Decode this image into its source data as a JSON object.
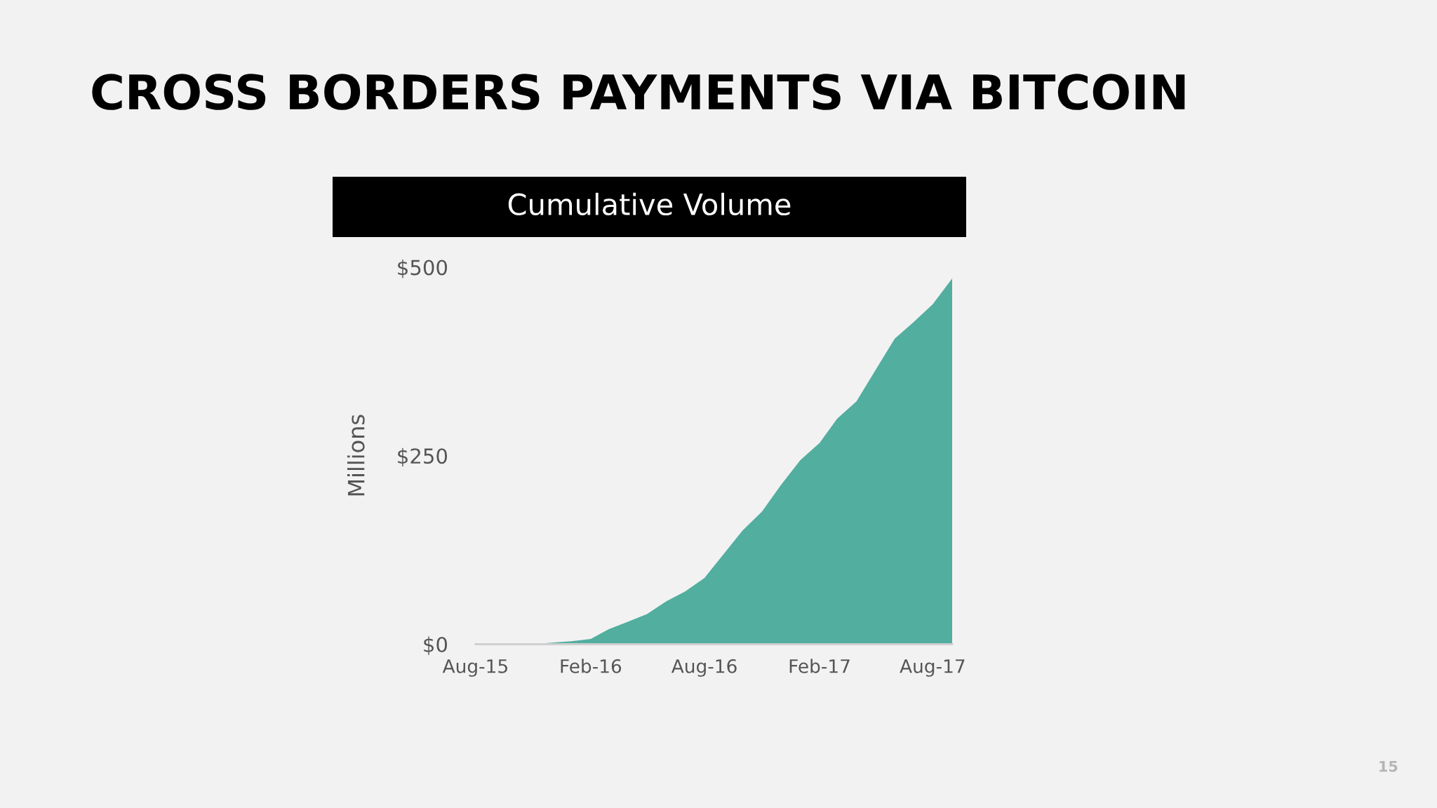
{
  "chart_data": {
    "type": "area",
    "title": "CROSS BORDERS PAYMENTS VIA BITCOIN",
    "subtitle": "Cumulative Volume",
    "ylabel": "Millions",
    "annotations": [
      "15"
    ],
    "x": [
      "2015-08",
      "2015-09",
      "2015-10",
      "2015-11",
      "2015-12",
      "2016-01",
      "2016-02",
      "2016-03",
      "2016-04",
      "2016-05",
      "2016-06",
      "2016-07",
      "2016-08",
      "2016-09",
      "2016-10",
      "2016-11",
      "2016-12",
      "2017-01",
      "2017-02",
      "2017-03",
      "2017-04",
      "2017-05",
      "2017-06",
      "2017-07",
      "2017-08",
      "2017-09"
    ],
    "series": [
      {
        "color": "#52ae9f",
        "values": [
          0,
          0,
          0,
          0,
          2,
          4,
          7,
          20,
          30,
          40,
          57,
          70,
          88,
          120,
          151,
          176,
          211,
          244,
          267,
          299,
          322,
          363,
          405,
          427,
          451,
          485
        ]
      }
    ],
    "xlim": [
      "2015-08",
      "2017-09"
    ],
    "xticks": [
      {
        "value": "2015-08",
        "label": "Aug-15"
      },
      {
        "value": "2016-02",
        "label": "Feb-16"
      },
      {
        "value": "2016-08",
        "label": "Aug-16"
      },
      {
        "value": "2017-02",
        "label": "Feb-17"
      },
      {
        "value": "2017-08",
        "label": "Aug-17"
      }
    ],
    "ylim": [
      0,
      500
    ],
    "yticks": [
      {
        "value": 0,
        "label": "$0"
      },
      {
        "value": 250,
        "label": "$250"
      },
      {
        "value": 500,
        "label": "$500"
      }
    ]
  }
}
